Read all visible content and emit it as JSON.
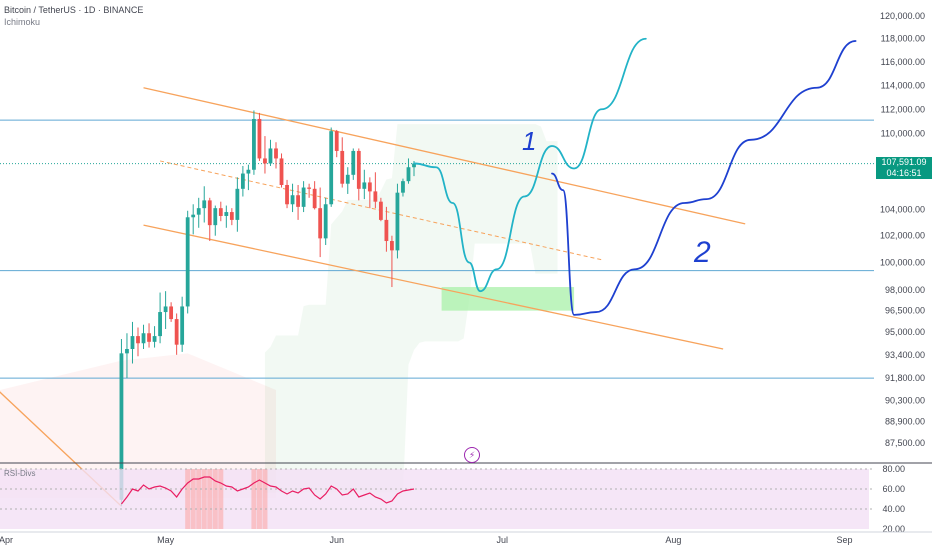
{
  "header": {
    "symbol_line": "Bitcoin / TetherUS · 1D · BINANCE",
    "indicator": "Ichimoku"
  },
  "price_tag": {
    "price": "107,591.09",
    "countdown": "04:16:51"
  },
  "rsi_panel": {
    "label": "RSI-Divs",
    "ticks": [
      "80.00",
      "60.00",
      "40.00",
      "20.00"
    ]
  },
  "drawing_labels": {
    "path1": "1",
    "path2": "2"
  },
  "colors": {
    "up": "#26a69a",
    "down": "#ef5350",
    "channel": "#f7a35c",
    "path1": "#22b3c7",
    "path2": "#1e40d0",
    "hline": "#5fa8d3",
    "target_zone": "#a8f0a8",
    "rsi": "#e91e63"
  },
  "chart_data": {
    "type": "candlestick",
    "title": "Bitcoin / TetherUS · 1D · BINANCE",
    "y_scale": "log",
    "ylim": [
      83500,
      121500
    ],
    "y_ticks": [
      "120,000.00",
      "118,000.00",
      "116,000.00",
      "114,000.00",
      "112,000.00",
      "110,000.00",
      "108,000.00",
      "106,000.00",
      "104,000.00",
      "102,000.00",
      "100,000.00",
      "98,000.00",
      "96,500.00",
      "95,000.00",
      "93,400.00",
      "91,800.00",
      "90,300.00",
      "88,900.00",
      "87,500.00"
    ],
    "x_ticks": [
      "Apr",
      "May",
      "Jun",
      "Jul",
      "Aug",
      "Sep"
    ],
    "candles_start": "2025-04-23",
    "candles": [
      [
        83900,
        94500,
        83500,
        93500
      ],
      [
        93500,
        94900,
        91800,
        93800
      ],
      [
        93800,
        95700,
        92800,
        94700
      ],
      [
        94700,
        95300,
        93300,
        94200
      ],
      [
        94200,
        95500,
        93800,
        94900
      ],
      [
        94900,
        95600,
        93900,
        94300
      ],
      [
        94300,
        95400,
        93900,
        94700
      ],
      [
        94700,
        97800,
        94200,
        96400
      ],
      [
        96400,
        97900,
        95200,
        96800
      ],
      [
        96800,
        97100,
        95700,
        95900
      ],
      [
        95900,
        96300,
        93400,
        94100
      ],
      [
        94100,
        97500,
        93600,
        96800
      ],
      [
        96800,
        103900,
        96300,
        103400
      ],
      [
        103400,
        104400,
        102100,
        103600
      ],
      [
        103600,
        104900,
        102600,
        104100
      ],
      [
        104100,
        105800,
        103000,
        104700
      ],
      [
        104700,
        104900,
        101600,
        102800
      ],
      [
        102800,
        104300,
        102000,
        104100
      ],
      [
        104100,
        104600,
        103100,
        103500
      ],
      [
        103500,
        104300,
        102600,
        103800
      ],
      [
        103800,
        104100,
        102800,
        103200
      ],
      [
        103200,
        106500,
        102300,
        105600
      ],
      [
        105600,
        107400,
        105000,
        106800
      ],
      [
        106800,
        107500,
        105500,
        107100
      ],
      [
        107100,
        111900,
        106700,
        111200
      ],
      [
        111200,
        111700,
        107800,
        108000
      ],
      [
        108000,
        109800,
        106800,
        107600
      ],
      [
        107600,
        109500,
        107400,
        108800
      ],
      [
        108800,
        109300,
        107200,
        108000
      ],
      [
        108000,
        108400,
        105700,
        105900
      ],
      [
        105900,
        106300,
        104100,
        104400
      ],
      [
        104400,
        106000,
        103800,
        105100
      ],
      [
        105100,
        105900,
        103200,
        104200
      ],
      [
        104200,
        106200,
        103800,
        105700
      ],
      [
        105700,
        106000,
        104900,
        105600
      ],
      [
        105600,
        106200,
        104000,
        104100
      ],
      [
        104100,
        105700,
        100400,
        101800
      ],
      [
        101800,
        104900,
        101300,
        104400
      ],
      [
        104400,
        110500,
        104200,
        110200
      ],
      [
        110200,
        110300,
        108100,
        108600
      ],
      [
        108600,
        109700,
        105700,
        106000
      ],
      [
        106000,
        107300,
        105200,
        106700
      ],
      [
        106700,
        108800,
        106300,
        108600
      ],
      [
        108600,
        108800,
        104700,
        105600
      ],
      [
        105600,
        107100,
        104800,
        106100
      ],
      [
        106100,
        106500,
        104100,
        105400
      ],
      [
        105400,
        106900,
        104100,
        104600
      ],
      [
        104600,
        104900,
        103100,
        103200
      ],
      [
        103200,
        104200,
        100800,
        101600
      ],
      [
        101600,
        102000,
        98200,
        100900
      ],
      [
        100900,
        106000,
        100300,
        105300
      ],
      [
        105300,
        106400,
        105000,
        106200
      ],
      [
        106200,
        108000,
        106000,
        107300
      ],
      [
        107300,
        107800,
        106600,
        107591
      ]
    ],
    "series": [
      {
        "name": "1",
        "kind": "projection",
        "points": [
          [
            "2025-06-15",
            107600
          ],
          [
            "2025-06-19",
            107300
          ],
          [
            "2025-06-22",
            104500
          ],
          [
            "2025-06-25",
            100000
          ],
          [
            "2025-06-27",
            97900
          ],
          [
            "2025-06-30",
            99500
          ],
          [
            "2025-07-05",
            105000
          ],
          [
            "2025-07-10",
            109000
          ],
          [
            "2025-07-14",
            107200
          ],
          [
            "2025-07-19",
            112000
          ],
          [
            "2025-07-27",
            118000
          ]
        ]
      },
      {
        "name": "2",
        "kind": "projection",
        "points": [
          [
            "2025-07-10",
            106800
          ],
          [
            "2025-07-12",
            105500
          ],
          [
            "2025-07-14",
            96200
          ],
          [
            "2025-07-18",
            96400
          ],
          [
            "2025-07-25",
            99500
          ],
          [
            "2025-08-03",
            104500
          ],
          [
            "2025-08-07",
            104800
          ],
          [
            "2025-08-15",
            109500
          ],
          [
            "2025-08-27",
            113800
          ],
          [
            "2025-09-03",
            117800
          ]
        ]
      }
    ],
    "trend_lines": [
      {
        "kind": "channel",
        "from": [
          "2025-04-27",
          113800
        ],
        "to": [
          "2025-08-14",
          102900
        ]
      },
      {
        "kind": "channel",
        "from": [
          "2025-04-27",
          102800
        ],
        "to": [
          "2025-08-10",
          93800
        ]
      },
      {
        "kind": "channel",
        "from": [
          "2025-03-31",
          91200
        ],
        "to": [
          "2025-04-23",
          83500
        ]
      },
      {
        "kind": "midline",
        "from": [
          "2025-04-30",
          107800
        ],
        "to": [
          "2025-07-19",
          100200
        ]
      }
    ],
    "horizontal_lines": [
      111100,
      107591,
      99400,
      91800
    ],
    "target_zone": {
      "x": [
        "2025-06-20",
        "2025-07-14"
      ],
      "y": [
        96500,
        98200
      ]
    },
    "rsi": [
      45,
      52,
      60,
      58,
      64,
      60,
      62,
      63,
      61,
      58,
      52,
      60,
      66,
      70,
      70,
      72,
      72,
      68,
      66,
      63,
      62,
      58,
      60,
      62,
      66,
      69,
      66,
      63,
      62,
      58,
      55,
      58,
      56,
      60,
      61,
      54,
      50,
      55,
      63,
      60,
      54,
      55,
      60,
      52,
      54,
      56,
      52,
      50,
      46,
      48,
      55,
      58,
      59,
      60
    ]
  }
}
